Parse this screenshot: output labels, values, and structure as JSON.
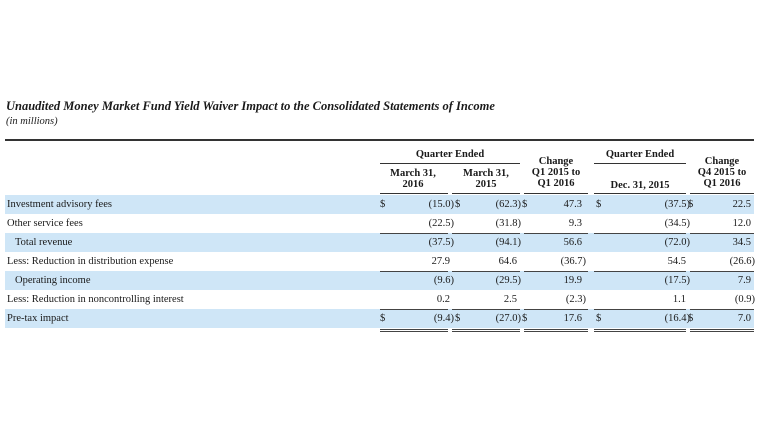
{
  "title": "Unaudited Money Market Fund Yield Waiver Impact to the Consolidated Statements of Income",
  "subtitle": "(in millions)",
  "headers": {
    "quarter_ended_1": "Quarter Ended",
    "quarter_ended_2": "Quarter Ended",
    "col_mar2016": [
      "March 31,",
      "2016"
    ],
    "col_mar2015": [
      "March 31,",
      "2015"
    ],
    "col_change_q1": [
      "Change",
      "Q1 2015 to",
      "Q1 2016"
    ],
    "col_dec2015": "Dec. 31, 2015",
    "col_change_q4": [
      "Change",
      "Q4 2015 to",
      "Q1 2016"
    ]
  },
  "rows": [
    {
      "label": "Investment advisory fees",
      "mar2016": "(15.0)",
      "mar2015": "(62.3)",
      "chg1": "47.3",
      "dec2015": "(37.5)",
      "chg2": "22.5",
      "dollars": true
    },
    {
      "label": "Other service fees",
      "mar2016": "(22.5)",
      "mar2015": "(31.8)",
      "chg1": "9.3",
      "dec2015": "(34.5)",
      "chg2": "12.0",
      "dollars": false
    },
    {
      "label": "Total revenue",
      "mar2016": "(37.5)",
      "mar2015": "(94.1)",
      "chg1": "56.6",
      "dec2015": "(72.0)",
      "chg2": "34.5",
      "dollars": false
    },
    {
      "label": "Less: Reduction in distribution expense",
      "mar2016": "27.9",
      "mar2015": "64.6",
      "chg1": "(36.7)",
      "dec2015": "54.5",
      "chg2": "(26.6)",
      "dollars": false
    },
    {
      "label": "Operating income",
      "mar2016": "(9.6)",
      "mar2015": "(29.5)",
      "chg1": "19.9",
      "dec2015": "(17.5)",
      "chg2": "7.9",
      "dollars": false
    },
    {
      "label": "Less: Reduction in noncontrolling interest",
      "mar2016": "0.2",
      "mar2015": "2.5",
      "chg1": "(2.3)",
      "dec2015": "1.1",
      "chg2": "(0.9)",
      "dollars": false
    },
    {
      "label": "Pre-tax impact",
      "mar2016": "(9.4)",
      "mar2015": "(27.0)",
      "chg1": "17.6",
      "dec2015": "(16.4)",
      "chg2": "7.0",
      "dollars": true
    }
  ],
  "currency_symbol": "$",
  "colors": {
    "row_shade": "#cfe6f7",
    "rule": "#333333"
  }
}
